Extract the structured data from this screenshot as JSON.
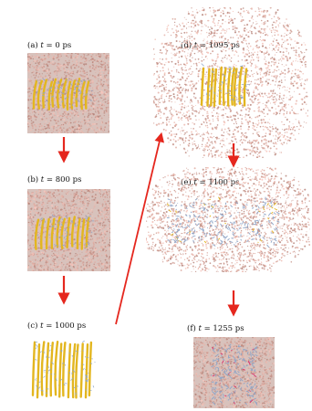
{
  "figure": {
    "panels": [
      {
        "id": "a",
        "letter": "(a)",
        "t_symbol": "t",
        "eq": "= 0 ps"
      },
      {
        "id": "b",
        "letter": "(b)",
        "t_symbol": "t",
        "eq": "= 800 ps"
      },
      {
        "id": "c",
        "letter": "(c)",
        "t_symbol": "t",
        "eq": "= 1000 ps"
      },
      {
        "id": "d",
        "letter": "(d)",
        "t_symbol": "t",
        "eq": "= 1095 ps"
      },
      {
        "id": "e",
        "letter": "(e)",
        "t_symbol": "t",
        "eq": "= 1100 ps"
      },
      {
        "id": "f",
        "letter": "(f)",
        "t_symbol": "t",
        "eq": "= 1255 ps"
      }
    ],
    "colors": {
      "water": "#c9a29a",
      "protein_yellow": "#e3b61f",
      "protein_blue": "#8fa6c8",
      "arrow": "#e5271e",
      "highlight": "#d9306b"
    },
    "icons": [
      "transition-arrow"
    ]
  }
}
